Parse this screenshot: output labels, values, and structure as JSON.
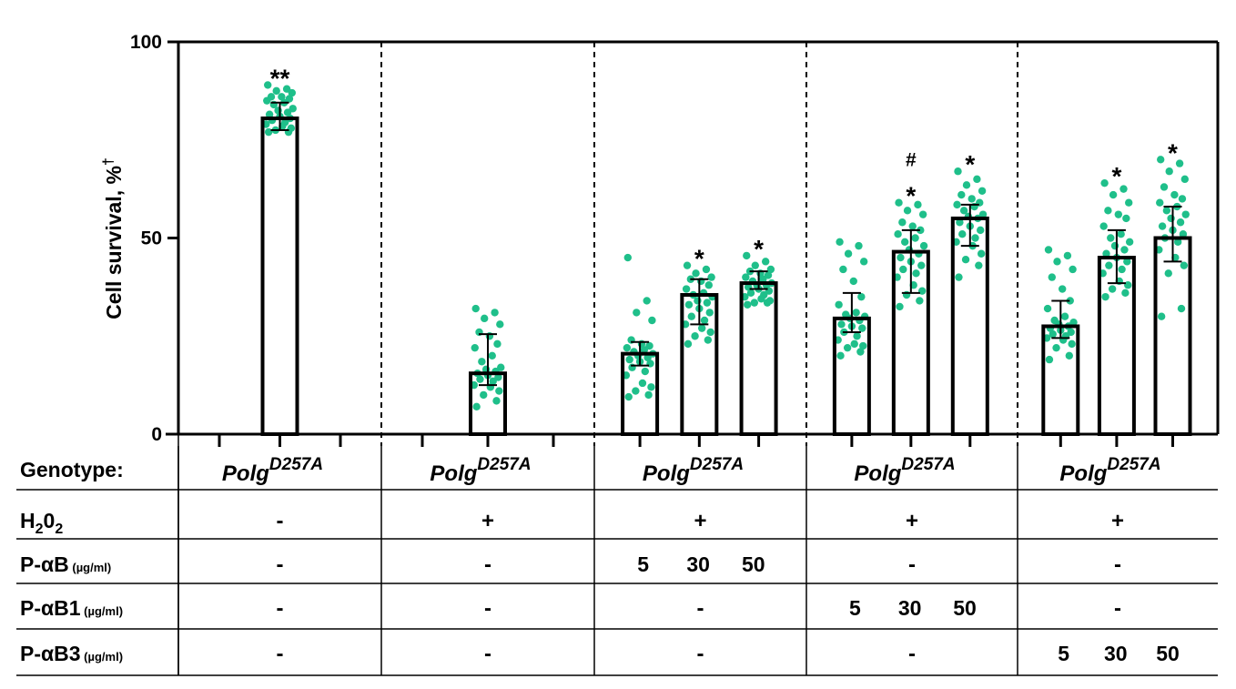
{
  "chart_data": {
    "type": "bar",
    "ylabel": "Cell survival, %",
    "ylabel_superscript": "†",
    "ylim": [
      0,
      100
    ],
    "yticks": [
      0,
      50,
      100
    ],
    "dot_color": "#1fbf8a",
    "bar_fill": "#ffffff",
    "bar_stroke": "#000000",
    "groups": [
      {
        "bars": [
          {
            "value": 80.5,
            "err_low": 77.5,
            "err_high": 84.5,
            "marks": [
              "**"
            ],
            "points": [
              89,
              88,
              87.5,
              87,
              86,
              86,
              85.5,
              85,
              84.5,
              84,
              83,
              82.5,
              82,
              81.5,
              81,
              80.5,
              80,
              79.5,
              79,
              78.5,
              78,
              77.5,
              77,
              77
            ]
          }
        ]
      },
      {
        "bars": [
          {
            "value": 15.5,
            "err_low": 12.5,
            "err_high": 25.5,
            "marks": [],
            "points": [
              32,
              31,
              29.5,
              28,
              26,
              25,
              23,
              22,
              20,
              18.5,
              17,
              16.5,
              16,
              15.5,
              15,
              14.5,
              14,
              13.5,
              12.5,
              12,
              11,
              10,
              8.5,
              7
            ]
          }
        ]
      },
      {
        "bars": [
          {
            "value": 20.5,
            "err_low": 17.5,
            "err_high": 23.5,
            "marks": [],
            "points": [
              45,
              34,
              31,
              29,
              24,
              23,
              22.5,
              22,
              21.5,
              21,
              20.5,
              20,
              19.5,
              19,
              18.5,
              18,
              17,
              16,
              15,
              13,
              12,
              11,
              10,
              9.5
            ]
          },
          {
            "value": 35.5,
            "err_low": 28,
            "err_high": 39.5,
            "marks": [
              "*"
            ],
            "points": [
              43,
              42,
              41,
              40,
              39.5,
              39,
              38,
              37,
              36,
              35.5,
              35,
              34,
              33.5,
              33,
              32,
              31,
              30,
              29,
              28,
              27,
              26,
              25,
              24,
              23
            ]
          },
          {
            "value": 38.5,
            "err_low": 37,
            "err_high": 41.5,
            "marks": [
              "*"
            ],
            "points": [
              45.5,
              44,
              43,
              42,
              41.5,
              41,
              40.5,
              40,
              39.5,
              39,
              38.5,
              38,
              38,
              37.5,
              37,
              36.5,
              36,
              35.5,
              35,
              34.5,
              34,
              33.5,
              33.5,
              33
            ]
          }
        ]
      },
      {
        "bars": [
          {
            "value": 29.5,
            "err_low": 26,
            "err_high": 36,
            "marks": [],
            "points": [
              49,
              48,
              46,
              44,
              42,
              39,
              35,
              33,
              31,
              30.5,
              30,
              29.5,
              29,
              28,
              27.5,
              27,
              26,
              25,
              24,
              23,
              22.5,
              22,
              21,
              20
            ]
          },
          {
            "value": 46.5,
            "err_low": 36,
            "err_high": 52,
            "marks": [
              "#",
              "*"
            ],
            "points": [
              59,
              58.5,
              57,
              56,
              54,
              53,
              52,
              51,
              50,
              49,
              48,
              47,
              46,
              45,
              44,
              43,
              42,
              41,
              40,
              38,
              36.5,
              35.5,
              34,
              32.5
            ]
          },
          {
            "value": 55,
            "err_low": 48,
            "err_high": 58.5,
            "marks": [
              "*"
            ],
            "points": [
              67,
              65,
              63.5,
              62,
              61,
              60,
              59,
              58.5,
              58,
              57,
              56,
              55.5,
              55,
              54,
              53,
              52,
              51,
              50,
              49,
              48,
              46,
              44.5,
              43,
              40
            ]
          }
        ]
      },
      {
        "bars": [
          {
            "value": 27.5,
            "err_low": 24.5,
            "err_high": 34,
            "marks": [],
            "points": [
              47,
              45.5,
              44,
              42,
              40,
              37,
              34,
              32,
              30,
              29,
              28.5,
              28,
              27.5,
              27,
              26.5,
              26,
              25.5,
              25,
              24.5,
              24,
              23,
              22,
              20,
              19
            ]
          },
          {
            "value": 45,
            "err_low": 38.5,
            "err_high": 52,
            "marks": [
              "*"
            ],
            "points": [
              64,
              62.5,
              61,
              59,
              57,
              56,
              55,
              53,
              51,
              50,
              49,
              48,
              47,
              46,
              45,
              44,
              43,
              42,
              41,
              39,
              38,
              37,
              36,
              35
            ]
          },
          {
            "value": 50,
            "err_low": 44,
            "err_high": 58,
            "marks": [
              "*"
            ],
            "points": [
              70,
              69,
              67,
              65,
              63,
              61,
              60,
              59,
              58,
              57,
              56,
              55,
              54,
              53,
              52,
              51,
              50,
              49,
              47,
              45,
              43,
              41,
              32,
              30
            ]
          }
        ]
      }
    ]
  },
  "table": {
    "rows": [
      {
        "label": "Genotype:",
        "sub": "",
        "sizes": ""
      },
      {
        "label": "H",
        "sub": "2",
        "label2": "0",
        "sub2": "2",
        "sizes": ""
      },
      {
        "label": "P-αB",
        "sizes": " (µg/ml)"
      },
      {
        "label": "P-αB1",
        "sizes": " (µg/ml)"
      },
      {
        "label": "P-αB3",
        "sizes": " (µg/ml)"
      }
    ],
    "genotype": {
      "base": "Polg",
      "sup": "D257A"
    },
    "cells": [
      [
        "-",
        "+",
        "+",
        "+",
        "+"
      ],
      [
        "-",
        "-",
        "5   30   50",
        "-",
        "-"
      ],
      [
        "-",
        "-",
        "-",
        "5   30   50",
        "-"
      ],
      [
        "-",
        "-",
        "-",
        "-",
        "5   30   50"
      ]
    ]
  }
}
